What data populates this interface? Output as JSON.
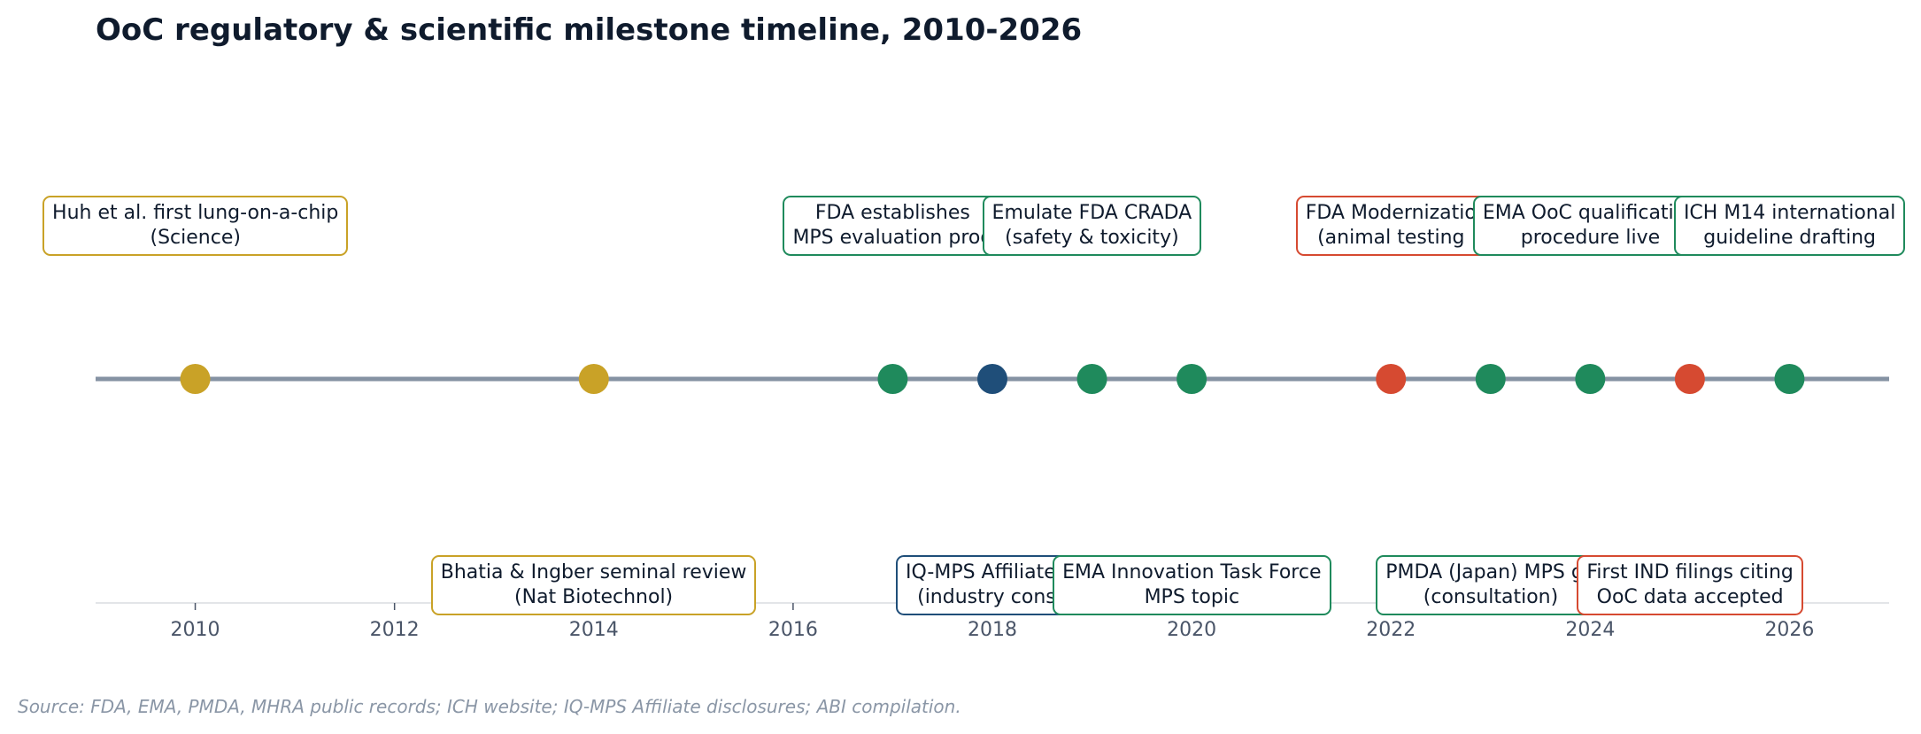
{
  "title": "OoC regulatory & scientific milestone timeline, 2010-2026",
  "source": "Source: FDA, EMA, PMDA, MHRA public records; ICH website; IQ-MPS Affiliate disclosures; ABI compilation.",
  "colors": {
    "gold": "#c9a227",
    "green": "#1f8a5c",
    "navy": "#1f4e79",
    "red": "#d64a31",
    "line": "#8592a3",
    "axis_text": "#4a5568",
    "title": "#0f1b2d"
  },
  "chart_data": {
    "type": "timeline",
    "xlim": [
      2009,
      2027
    ],
    "x_ticks": [
      "2010",
      "2012",
      "2014",
      "2016",
      "2018",
      "2020",
      "2022",
      "2024",
      "2026"
    ],
    "grid": false,
    "legend": "none",
    "events": [
      {
        "year": 2010,
        "side": "above",
        "color": "gold",
        "lines": [
          "Huh et al. first lung-on-a-chip",
          "(Science)"
        ]
      },
      {
        "year": 2014,
        "side": "below",
        "color": "gold",
        "lines": [
          "Bhatia & Ingber seminal review",
          "(Nat Biotechnol)"
        ]
      },
      {
        "year": 2017,
        "side": "above",
        "color": "green",
        "lines": [
          "FDA establishes",
          "MPS evaluation prog"
        ]
      },
      {
        "year": 2018,
        "side": "below",
        "color": "navy",
        "lines": [
          "IQ-MPS Affiliate la",
          "(industry conso"
        ]
      },
      {
        "year": 2019,
        "side": "above",
        "color": "green",
        "lines": [
          "Emulate FDA CRADA",
          "(safety & toxicity)"
        ]
      },
      {
        "year": 2020,
        "side": "below",
        "color": "green",
        "lines": [
          "EMA Innovation Task Force",
          "MPS topic"
        ]
      },
      {
        "year": 2022,
        "side": "above",
        "color": "red",
        "lines": [
          "FDA Modernizatio",
          "(animal testing"
        ]
      },
      {
        "year": 2023,
        "side": "below",
        "color": "green",
        "lines": [
          "PMDA (Japan) MPS gu",
          "(consultation)"
        ]
      },
      {
        "year": 2024,
        "side": "above",
        "color": "green",
        "lines": [
          "EMA OoC qualification",
          "procedure live"
        ]
      },
      {
        "year": 2025,
        "side": "below",
        "color": "red",
        "lines": [
          "First IND filings citing",
          "OoC data accepted"
        ]
      },
      {
        "year": 2026,
        "side": "above",
        "color": "green",
        "lines": [
          "ICH M14 international",
          "guideline drafting"
        ]
      }
    ]
  }
}
